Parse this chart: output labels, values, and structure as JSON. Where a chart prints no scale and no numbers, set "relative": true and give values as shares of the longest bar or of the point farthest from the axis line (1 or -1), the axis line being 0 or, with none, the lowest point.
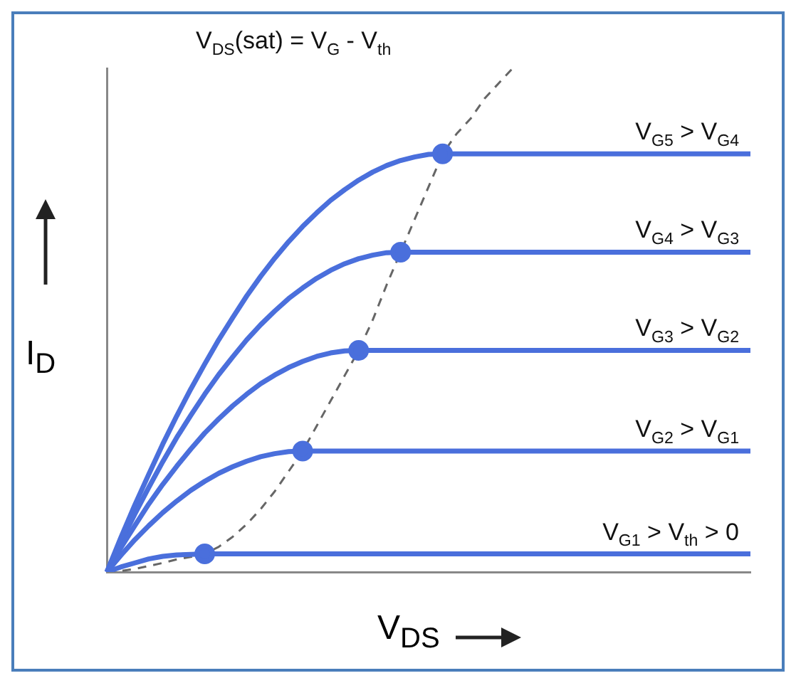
{
  "chart_data": {
    "type": "line",
    "relative": true,
    "xlabel": "V$_{DS}$",
    "ylabel": "I$_{D}$",
    "annotations": [
      "V$_{DS}$(sat) = V$_{G}$ - V$_{th}$"
    ],
    "categories": [
      null,
      null,
      null,
      null,
      null,
      null,
      null,
      null,
      null,
      null,
      null,
      null,
      null,
      null,
      null,
      null,
      null,
      null,
      null,
      null,
      null,
      null,
      null,
      null,
      null,
      null,
      null,
      null,
      null,
      null,
      null,
      null,
      null,
      null,
      null,
      null,
      null,
      null,
      null,
      null,
      null,
      null,
      null,
      null,
      null,
      null,
      null
    ],
    "series": [
      {
        "name": "V$_{G1}$ > V$_{th}$ > 0",
        "color": "#4a6fdc",
        "values": [
          0,
          0.01,
          0.018,
          0.026,
          0.031,
          0.034,
          0.035,
          0.036,
          0.036,
          0.036,
          0.036,
          0.036,
          0.036,
          0.036,
          0.036,
          0.036,
          0.036,
          0.036,
          0.036,
          0.036,
          0.036,
          0.036,
          0.036,
          0.036,
          0.036,
          0.036,
          0.036,
          0.036,
          0.036,
          0.036,
          0.036,
          0.036,
          0.036,
          0.036,
          0.036,
          0.036,
          0.036,
          0.036,
          0.036,
          0.036,
          0.036,
          0.036,
          0.036,
          0.036,
          0.036,
          0.036,
          0.036
        ]
      },
      {
        "name": "V$_{G2}$ > V$_{G1}$",
        "color": "#4a6fdc",
        "values": [
          0,
          0.033,
          0.064,
          0.092,
          0.118,
          0.141,
          0.162,
          0.18,
          0.196,
          0.209,
          0.22,
          0.229,
          0.235,
          0.239,
          0.24,
          0.24,
          0.24,
          0.24,
          0.24,
          0.24,
          0.24,
          0.24,
          0.24,
          0.24,
          0.24,
          0.24,
          0.24,
          0.24,
          0.24,
          0.24,
          0.24,
          0.24,
          0.24,
          0.24,
          0.24,
          0.24,
          0.24,
          0.24,
          0.24,
          0.24,
          0.24,
          0.24,
          0.24,
          0.24,
          0.24,
          0.24,
          0.24
        ]
      },
      {
        "name": "V$_{G3}$ > V$_{G2}$",
        "color": "#4a6fdc",
        "values": [
          0,
          0.048,
          0.092,
          0.135,
          0.174,
          0.21,
          0.244,
          0.276,
          0.304,
          0.33,
          0.353,
          0.374,
          0.391,
          0.406,
          0.418,
          0.428,
          0.435,
          0.439,
          0.44,
          0.44,
          0.44,
          0.44,
          0.44,
          0.44,
          0.44,
          0.44,
          0.44,
          0.44,
          0.44,
          0.44,
          0.44,
          0.44,
          0.44,
          0.44,
          0.44,
          0.44,
          0.44,
          0.44,
          0.44,
          0.44,
          0.44,
          0.44,
          0.44,
          0.44,
          0.44,
          0.44,
          0.44
        ]
      },
      {
        "name": "V$_{G4}$ > V$_{G3}$",
        "color": "#4a6fdc",
        "values": [
          0,
          0.059,
          0.115,
          0.168,
          0.219,
          0.267,
          0.311,
          0.353,
          0.392,
          0.427,
          0.461,
          0.491,
          0.518,
          0.543,
          0.564,
          0.583,
          0.599,
          0.612,
          0.622,
          0.629,
          0.634,
          0.635,
          0.635,
          0.635,
          0.635,
          0.635,
          0.635,
          0.635,
          0.635,
          0.635,
          0.635,
          0.635,
          0.635,
          0.635,
          0.635,
          0.635,
          0.635,
          0.635,
          0.635,
          0.635,
          0.635,
          0.635,
          0.635,
          0.635,
          0.635,
          0.635,
          0.635
        ]
      },
      {
        "name": "V$_{G5}$ > V$_{G4}$",
        "color": "#4a6fdc",
        "values": [
          0,
          0.068,
          0.133,
          0.194,
          0.254,
          0.31,
          0.363,
          0.413,
          0.461,
          0.505,
          0.548,
          0.587,
          0.623,
          0.656,
          0.686,
          0.713,
          0.738,
          0.759,
          0.778,
          0.794,
          0.807,
          0.817,
          0.824,
          0.829,
          0.83,
          0.83,
          0.83,
          0.83,
          0.83,
          0.83,
          0.83,
          0.83,
          0.83,
          0.83,
          0.83,
          0.83,
          0.83,
          0.83,
          0.83,
          0.83,
          0.83,
          0.83,
          0.83,
          0.83,
          0.83,
          0.83,
          0.83
        ]
      },
      {
        "color": "#666666",
        "line_style": "dashed",
        "values": [
          0,
          0.002,
          0.006,
          0.012,
          0.018,
          0.025,
          0.03,
          0.036,
          0.05,
          0.07,
          0.095,
          0.125,
          0.16,
          0.2,
          0.24,
          0.29,
          0.34,
          0.39,
          0.44,
          0.5,
          0.57,
          0.635,
          0.7,
          0.765,
          0.83,
          0.87,
          0.9,
          0.94,
          0.97,
          1,
          null,
          null,
          null,
          null,
          null,
          null,
          null,
          null,
          null,
          null,
          null,
          null,
          null,
          null,
          null,
          null,
          null
        ]
      }
    ]
  }
}
